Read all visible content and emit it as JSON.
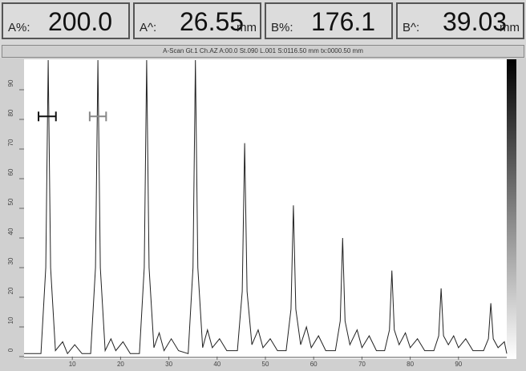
{
  "readouts": [
    {
      "label": "A%:",
      "value": "200.0"
    },
    {
      "label": "A^:",
      "value": "26.55",
      "unit": "mm"
    },
    {
      "label": "B%:",
      "value": "176.1"
    },
    {
      "label": "B^:",
      "value": "39.03",
      "unit": "mm"
    }
  ],
  "info": "A-Scan Gt.1 Ch.AZ A:00.0 St.090 L.001 S:0116.50 mm tx:0000.50 mm",
  "chart_data": {
    "type": "line",
    "x": [
      0,
      3.5,
      4.5,
      5,
      5.5,
      6.5,
      8,
      9,
      10.5,
      12,
      13.8,
      14.8,
      15.3,
      15.8,
      16.8,
      18,
      19,
      20.5,
      22,
      23.9,
      24.9,
      25.4,
      25.9,
      26.9,
      28,
      29,
      30.5,
      32,
      34,
      35,
      35.5,
      36,
      37,
      38,
      39,
      40.5,
      42,
      44.2,
      45.2,
      45.7,
      46.2,
      47.2,
      48.5,
      49.5,
      51,
      52.5,
      54.3,
      55.3,
      55.8,
      56.3,
      57.3,
      58.5,
      59.5,
      61,
      62.5,
      64.5,
      65.5,
      66,
      66.5,
      67.5,
      69,
      70,
      71.5,
      73,
      74.7,
      75.7,
      76.2,
      76.7,
      77.7,
      79,
      80,
      81.5,
      83,
      84.9,
      85.9,
      86.4,
      86.9,
      87.9,
      89,
      90,
      91.5,
      93,
      95.2,
      96.2,
      96.7,
      97.2,
      98.2,
      99.5,
      100
    ],
    "series": [
      {
        "color": "#222222",
        "values": [
          1,
          1,
          30,
          100,
          30,
          2,
          5,
          1,
          4,
          1,
          1,
          30,
          100,
          30,
          2,
          6,
          2,
          5,
          1,
          1,
          30,
          100,
          30,
          3,
          8,
          2,
          6,
          2,
          1,
          30,
          100,
          30,
          3,
          9,
          3,
          6,
          2,
          2,
          22,
          72,
          22,
          4,
          9,
          3,
          6,
          2,
          2,
          16,
          51,
          16,
          4,
          10,
          3,
          7,
          2,
          2,
          12,
          40,
          12,
          4,
          9,
          3,
          7,
          2,
          2,
          9,
          29,
          9,
          4,
          8,
          3,
          6,
          2,
          2,
          7,
          23,
          7,
          4,
          7,
          3,
          6,
          2,
          2,
          6,
          18,
          6,
          3,
          5,
          1
        ]
      }
    ],
    "gates": [
      {
        "start": 3,
        "end": 6.6,
        "level": 81,
        "color": "#111111"
      },
      {
        "start": 13.6,
        "end": 17,
        "level": 81,
        "color": "#888888"
      }
    ],
    "xlim": [
      0,
      100
    ],
    "xticks": [
      10,
      20,
      30,
      40,
      50,
      60,
      70,
      80,
      90
    ],
    "ylim": [
      0,
      100
    ],
    "yticks": [
      0,
      10,
      20,
      30,
      40,
      50,
      60,
      70,
      80,
      90
    ]
  }
}
